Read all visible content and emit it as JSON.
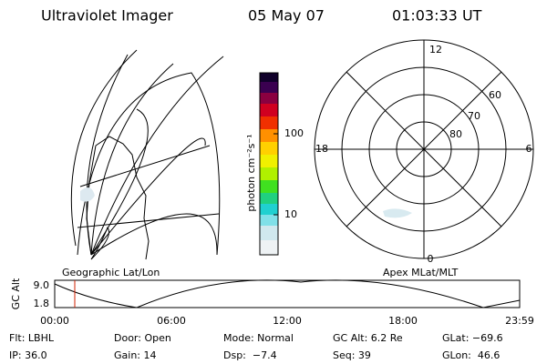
{
  "header": {
    "title": "Ultraviolet Imager",
    "date": "05 May 07",
    "time": "01:03:33 UT"
  },
  "colorbar": {
    "label": "photon cm⁻²s⁻¹",
    "ticks": [
      "100",
      "10"
    ]
  },
  "map": {
    "label": "Geographic Lat/Lon"
  },
  "polar": {
    "label": "Apex MLat/MLT",
    "hours": [
      "12",
      "6",
      "0",
      "18"
    ],
    "latitudes": [
      "60",
      "70",
      "80"
    ]
  },
  "timeline": {
    "label": "GC Alt",
    "y_ticks": [
      "9.0",
      "1.8"
    ],
    "x_ticks": [
      "00:00",
      "06:00",
      "12:00",
      "18:00",
      "23:59"
    ]
  },
  "status": {
    "rows": [
      [
        "Flt: LBHL",
        "Door: Open",
        "Mode: Normal",
        "GC Alt: 6.2 Re",
        "GLat: −69.6"
      ],
      [
        "IP: 36.0",
        "Gain: 14",
        "Dsp:  −7.4",
        "Seq: 39",
        "GLon:  46.6"
      ]
    ]
  }
}
